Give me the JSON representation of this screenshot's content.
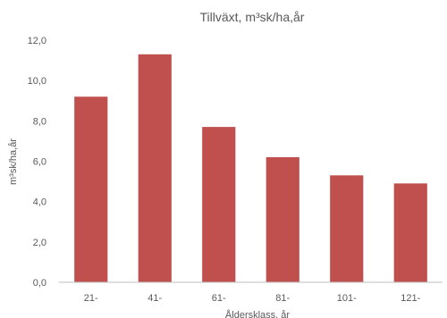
{
  "chart_data": {
    "type": "bar",
    "title": "Tillväxt, m³sk/ha,år",
    "xlabel": "Åldersklass, år",
    "ylabel": "m³sk/ha,år",
    "categories": [
      "21-",
      "41-",
      "61-",
      "81-",
      "101-",
      "121-"
    ],
    "values": [
      9.2,
      11.3,
      7.7,
      6.2,
      5.3,
      4.9
    ],
    "ylim": [
      0,
      12
    ],
    "yticks": [
      "0,0",
      "2,0",
      "4,0",
      "6,0",
      "8,0",
      "10,0",
      "12,0"
    ],
    "grid": false,
    "legend": "none",
    "bar_color": "#c0504d"
  }
}
